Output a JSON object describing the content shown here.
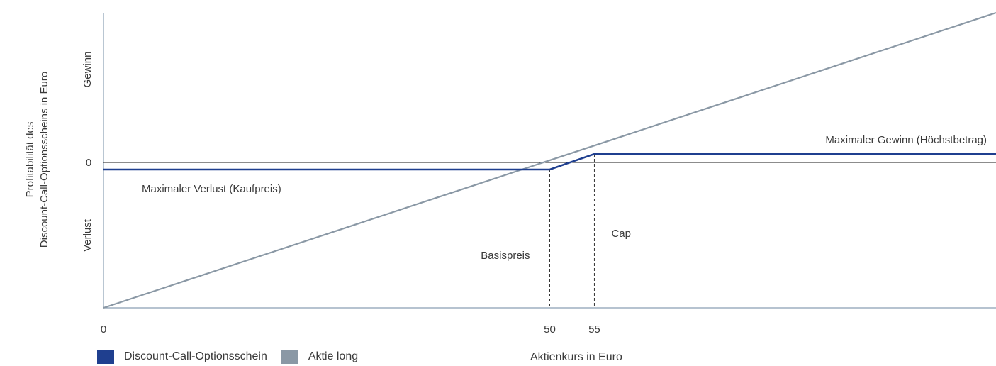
{
  "colors": {
    "axis": "#8a9fb3",
    "discount": "#1f3f8f",
    "aktie": "#8a98a5",
    "zero_line": "#1a1a1a",
    "text": "#3a3a3a"
  },
  "chart_data": {
    "type": "line",
    "ylabel": [
      "Profitabilität des",
      "Discount-Call-Optionsscheins in Euro"
    ],
    "xlabel": "Aktienkurs in Euro",
    "y_region_labels": {
      "gain": "Gewinn",
      "loss": "Verlust",
      "zero": "0"
    },
    "x_ticks": [
      "0",
      "50",
      "55"
    ],
    "xlim": [
      0,
      100
    ],
    "ylim": [
      -100,
      100
    ],
    "series": [
      {
        "name": "Discount-Call-Optionsschein",
        "color": "#1f3f8f",
        "x": [
          0,
          50,
          55,
          100
        ],
        "y": [
          -5,
          -5,
          5,
          5
        ]
      },
      {
        "name": "Aktie long",
        "color": "#8a98a5",
        "x": [
          0,
          100
        ],
        "y": [
          -100,
          100
        ]
      }
    ],
    "markers": [
      {
        "label": "Basispreis",
        "x": 50
      },
      {
        "label": "Cap",
        "x": 55
      }
    ],
    "annotations": {
      "max_loss": "Maximaler Verlust (Kaufpreis)",
      "max_gain": "Maximaler Gewinn (Höchstbetrag)"
    }
  }
}
